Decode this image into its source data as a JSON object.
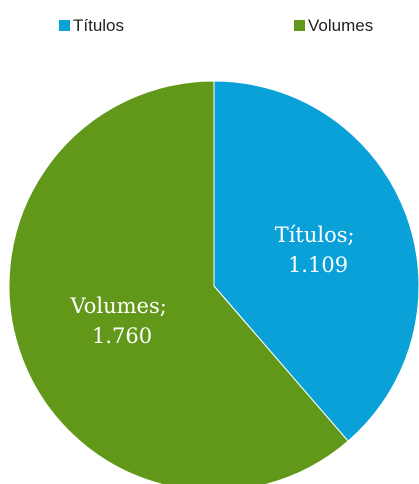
{
  "chart_data": {
    "type": "pie",
    "title": "",
    "legend_position": "top",
    "slices": [
      {
        "label": "Títulos",
        "value": 1109,
        "display_value": "1.109",
        "color": "#0aa0d8"
      },
      {
        "label": "Volumes",
        "value": 1760,
        "display_value": "1.760",
        "color": "#62981a"
      }
    ],
    "data_labels": [
      {
        "line1": "Títulos;",
        "line2": "1.109"
      },
      {
        "line1": "Volumes;",
        "line2": "1.760"
      }
    ],
    "start_angle": "12 o'clock",
    "direction": "clockwise"
  }
}
